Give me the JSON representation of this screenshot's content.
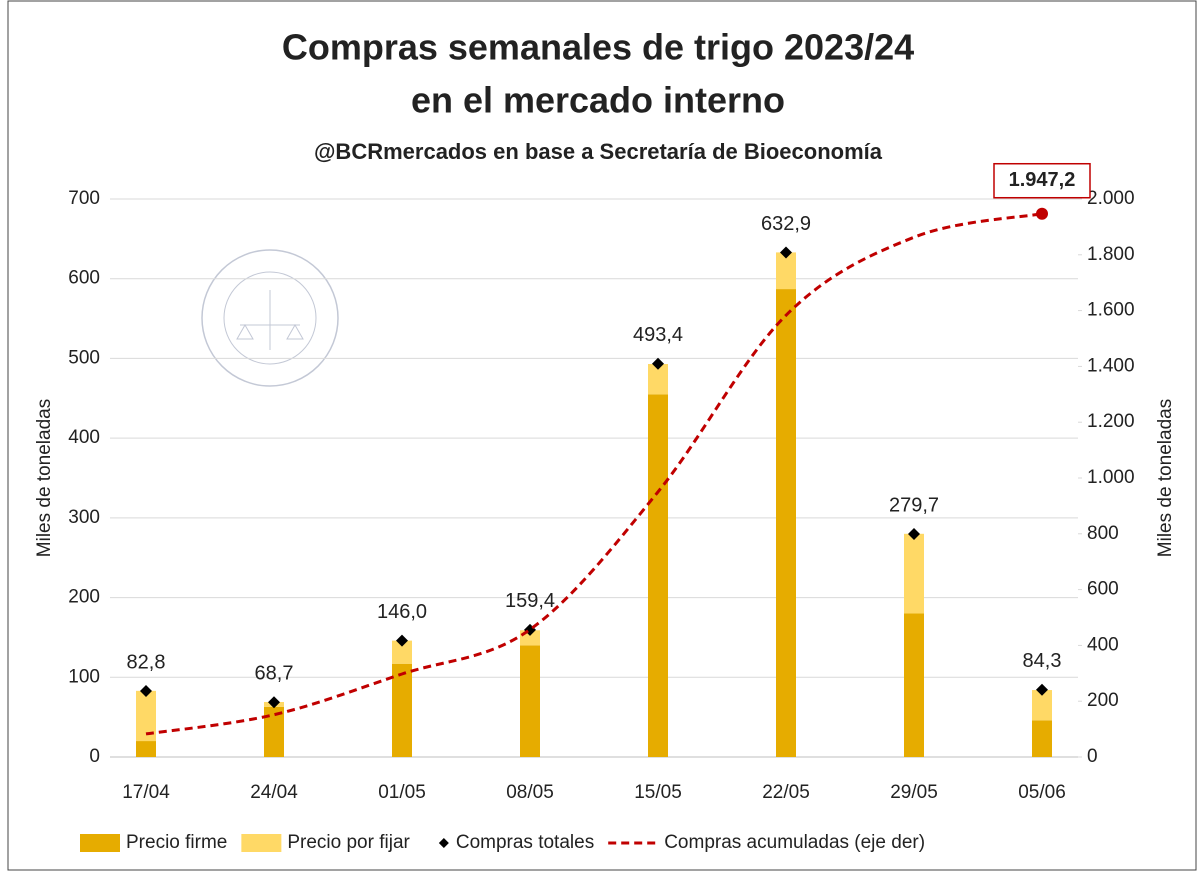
{
  "chart_data": {
    "type": "bar",
    "stacked": true,
    "title": [
      "Compras semanales de trigo 2023/24",
      "en el mercado interno"
    ],
    "subtitle": "@BCRmercados en base a Secretaría de Bioeconomía",
    "y_label": "Miles de toneladas",
    "y2_label": "Miles de toneladas",
    "categories": [
      "17/04",
      "24/04",
      "01/05",
      "08/05",
      "15/05",
      "22/05",
      "29/05",
      "05/06"
    ],
    "ylim": [
      0,
      700
    ],
    "yticks": [
      0,
      100,
      200,
      300,
      400,
      500,
      600,
      700
    ],
    "y2lim": [
      0,
      2000
    ],
    "y2ticks": [
      0,
      200,
      400,
      600,
      800,
      {
        "value": 1000,
        "label": "1.000"
      },
      {
        "value": 1200,
        "label": "1.200"
      },
      {
        "value": 1400,
        "label": "1.400"
      },
      {
        "value": 1600,
        "label": "1.600"
      },
      {
        "value": 1800,
        "label": "1.800"
      },
      {
        "value": 2000,
        "label": "2.000"
      }
    ],
    "grid": true,
    "legend": "bottom",
    "series": [
      {
        "name": "Precio firme",
        "kind": "bar",
        "color": "#e6ac00",
        "values": [
          20,
          63,
          117,
          140,
          455,
          587,
          180,
          46
        ]
      },
      {
        "name": "Precio por fijar",
        "kind": "bar",
        "color": "#ffd966",
        "values": [
          63,
          6,
          29,
          19,
          38,
          46,
          100,
          38
        ]
      },
      {
        "name": "Compras totales",
        "kind": "marker",
        "color": "#000000",
        "values": [
          82.8,
          68.7,
          146.0,
          159.4,
          493.4,
          632.9,
          279.7,
          84.3
        ],
        "value_labels": [
          "82,8",
          "68,7",
          "146,0",
          "159,4",
          "493,4",
          "632,9",
          "279,7",
          "84,3"
        ]
      },
      {
        "name": "Compras acumuladas (eje der)",
        "kind": "line",
        "axis": "y2",
        "color": "#c00000",
        "values": [
          82.8,
          151.5,
          297.5,
          456.9,
          950.3,
          1583.2,
          1862.9,
          1947.2
        ],
        "value_labels": [
          null,
          null,
          null,
          null,
          null,
          null,
          null,
          "1.947,2"
        ]
      }
    ]
  }
}
